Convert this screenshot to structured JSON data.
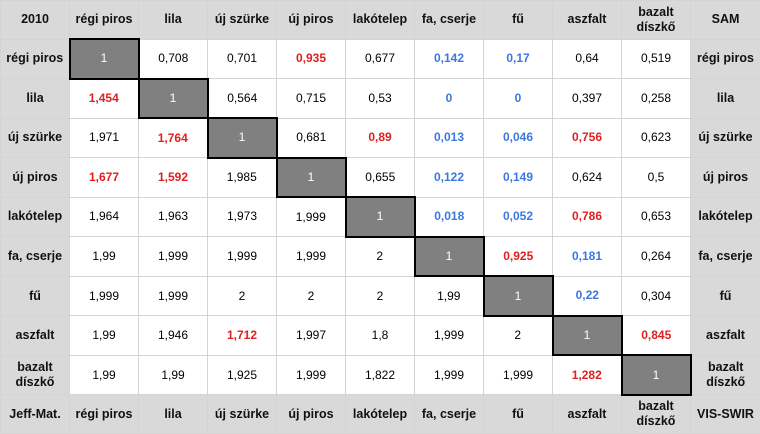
{
  "corner_top_left": "2010",
  "corner_top_right": "SAM",
  "corner_bottom_left": "Jeff-Mat.",
  "corner_bottom_right": "VIS-SWIR",
  "labels": [
    "régi piros",
    "lila",
    "új szürke",
    "új piros",
    "lakótelep",
    "fa, cserje",
    "fű",
    "aszfalt",
    "bazalt díszkő"
  ],
  "matrix": [
    [
      "1",
      "0,708",
      "0,701",
      "0,935",
      "0,677",
      "0,142",
      "0,17",
      "0,64",
      "0,519"
    ],
    [
      "1,454",
      "1",
      "0,564",
      "0,715",
      "0,53",
      "0",
      "0",
      "0,397",
      "0,258"
    ],
    [
      "1,971",
      "1,764",
      "1",
      "0,681",
      "0,89",
      "0,013",
      "0,046",
      "0,756",
      "0,623"
    ],
    [
      "1,677",
      "1,592",
      "1,985",
      "1",
      "0,655",
      "0,122",
      "0,149",
      "0,624",
      "0,5"
    ],
    [
      "1,964",
      "1,963",
      "1,973",
      "1,999",
      "1",
      "0,018",
      "0,052",
      "0,786",
      "0,653"
    ],
    [
      "1,99",
      "1,999",
      "1,999",
      "1,999",
      "2",
      "1",
      "0,925",
      "0,181",
      "0,264"
    ],
    [
      "1,999",
      "1,999",
      "2",
      "2",
      "2",
      "1,99",
      "1",
      "0,22",
      "0,304"
    ],
    [
      "1,99",
      "1,946",
      "1,712",
      "1,997",
      "1,8",
      "1,999",
      "2",
      "1",
      "0,845"
    ],
    [
      "1,99",
      "1,99",
      "1,925",
      "1,999",
      "1,822",
      "1,999",
      "1,999",
      "1,282",
      "1"
    ]
  ],
  "highlight_high": [
    [
      0,
      3
    ],
    [
      1,
      0
    ],
    [
      2,
      1
    ],
    [
      2,
      4
    ],
    [
      2,
      7
    ],
    [
      3,
      0
    ],
    [
      3,
      1
    ],
    [
      4,
      7
    ],
    [
      5,
      6
    ],
    [
      7,
      2
    ],
    [
      7,
      8
    ],
    [
      8,
      7
    ]
  ],
  "highlight_low": [
    [
      0,
      5
    ],
    [
      0,
      6
    ],
    [
      1,
      5
    ],
    [
      1,
      6
    ],
    [
      2,
      5
    ],
    [
      2,
      6
    ],
    [
      3,
      5
    ],
    [
      3,
      6
    ],
    [
      4,
      5
    ],
    [
      4,
      6
    ],
    [
      5,
      7
    ],
    [
      6,
      7
    ]
  ],
  "colors": {
    "header_bg": "#d9d9d9",
    "diagonal_bg": "#808080",
    "high_text": "#e02020",
    "low_text": "#3a78e0"
  }
}
